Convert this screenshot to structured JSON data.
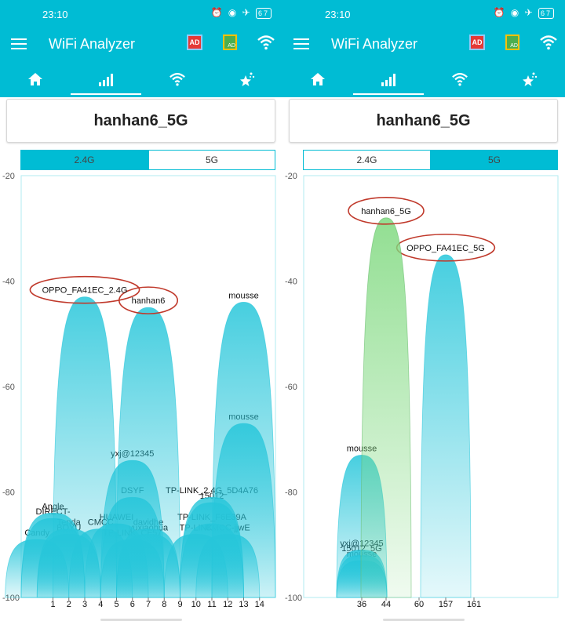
{
  "colors": {
    "accent": "#00bcd4",
    "active_green": "#7fd97f",
    "curve_blue": "#26c6da",
    "highlight_red": "#c0392b"
  },
  "status": {
    "time": "23:10",
    "battery": "67"
  },
  "app": {
    "title": "WiFi Analyzer",
    "ad_badge": "AD"
  },
  "tabs": [
    "home-icon",
    "bar-chart-icon",
    "wifi-icon",
    "stars-icon"
  ],
  "screens": [
    {
      "ssid": "hanhan6_5G",
      "bands": [
        "2.4G",
        "5G"
      ],
      "selected_band": "2.4G",
      "chart_data": {
        "type": "area",
        "band": "2.4G",
        "ylabel_ticks": [
          "-20",
          "-40",
          "-60",
          "-80",
          "-100"
        ],
        "ylim": [
          -100,
          -20
        ],
        "xlim": [
          -1,
          15
        ],
        "x_ticks": [
          "1",
          "2",
          "3",
          "4",
          "5",
          "6",
          "7",
          "8",
          "9",
          "10",
          "11",
          "12",
          "13",
          "14"
        ],
        "grid": false,
        "networks": [
          {
            "ssid": "OPPO_FA41EC_2.4G",
            "channel": 3,
            "level": -43,
            "highlight": true
          },
          {
            "ssid": "hanhan6",
            "channel": 7,
            "level": -45,
            "highlight": true
          },
          {
            "ssid": "mousse",
            "channel": 13,
            "level": -44
          },
          {
            "ssid": "mousse",
            "channel": 13,
            "level": -67
          },
          {
            "ssid": "yxj@12345",
            "channel": 6,
            "level": -74
          },
          {
            "ssid": "DSYF",
            "channel": 6,
            "level": -81
          },
          {
            "ssid": "TP-LINK_2.4G_5D4A76",
            "channel": 11,
            "level": -81
          },
          {
            "ssid": "15012",
            "channel": 11,
            "level": -82
          },
          {
            "ssid": "Angle",
            "channel": 1,
            "level": -84
          },
          {
            "ssid": "DIRECT-",
            "channel": 1,
            "level": -85
          },
          {
            "ssid": "HUAWEI",
            "channel": 5,
            "level": -86
          },
          {
            "ssid": "TP-LINK_F6E39A",
            "channel": 11,
            "level": -86
          },
          {
            "ssid": "CMCC",
            "channel": 4,
            "level": -87
          },
          {
            "ssid": "davidhe",
            "channel": 7,
            "level": -87
          },
          {
            "ssid": "Tenda",
            "channel": 2,
            "level": -87
          },
          {
            "ssid": "BOYU",
            "channel": 2,
            "level": -88
          },
          {
            "ssid": "yuxiaohua",
            "channel": 7,
            "level": -88
          },
          {
            "ssid": "TP-LINK",
            "channel": 10,
            "level": -88
          },
          {
            "ssid": "CMCC-jjwE",
            "channel": 12,
            "level": -88
          },
          {
            "ssid": "Candy",
            "channel": 0,
            "level": -89
          },
          {
            "ssid": "TP-LINK_CF57",
            "channel": 6,
            "level": -89
          }
        ]
      }
    },
    {
      "ssid": "hanhan6_5G",
      "bands": [
        "2.4G",
        "5G"
      ],
      "selected_band": "5G",
      "chart_data": {
        "type": "area",
        "band": "5G",
        "ylabel_ticks": [
          "-20",
          "-40",
          "-60",
          "-80",
          "-100"
        ],
        "ylim": [
          -100,
          -20
        ],
        "x_ticks": [
          "36",
          "44",
          "60",
          "157",
          "161"
        ],
        "grid": false,
        "networks": [
          {
            "ssid": "hanhan6_5G",
            "channel": 44,
            "level": -28,
            "highlight": true,
            "active": true
          },
          {
            "ssid": "OPPO_FA41EC_5G",
            "channel": 157,
            "level": -35,
            "highlight": true
          },
          {
            "ssid": "mousse",
            "channel": 36,
            "level": -73
          },
          {
            "ssid": "yxj@12345",
            "channel": 36,
            "level": -91
          },
          {
            "ssid": "15012_5G",
            "channel": 36,
            "level": -92
          },
          {
            "ssid": "mousse",
            "channel": 36,
            "level": -93
          }
        ]
      }
    }
  ]
}
